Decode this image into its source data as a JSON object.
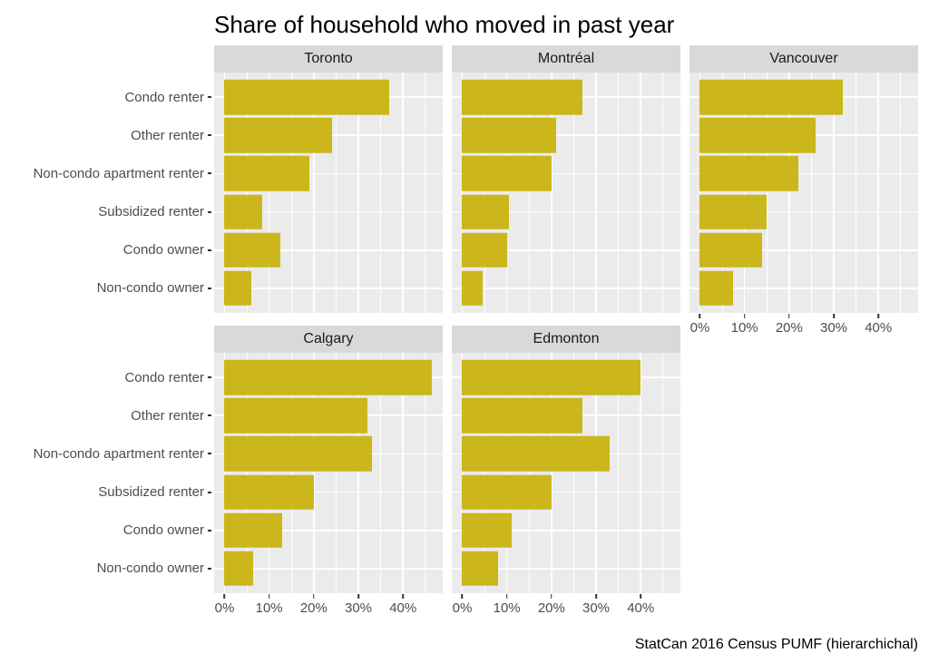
{
  "title": "Share of household who moved in past year",
  "caption": "StatCan 2016 Census PUMF (hierarchichal)",
  "chart_data": {
    "type": "bar",
    "orientation": "horizontal",
    "title": "Share of household who moved in past year",
    "caption": "StatCan 2016 Census PUMF (hierarchichal)",
    "categories": [
      "Condo renter",
      "Other renter",
      "Non-condo apartment renter",
      "Subsidized renter",
      "Condo owner",
      "Non-condo owner"
    ],
    "facets": [
      {
        "name": "Toronto",
        "row": 0,
        "show_axis": false,
        "values": [
          37,
          24,
          19,
          8.5,
          12.5,
          6
        ]
      },
      {
        "name": "Montréal",
        "row": 0,
        "show_axis": false,
        "values": [
          27,
          21,
          20,
          10.5,
          10,
          4.5
        ]
      },
      {
        "name": "Vancouver",
        "row": 0,
        "show_axis": true,
        "values": [
          32,
          26,
          22,
          15,
          14,
          7.5
        ]
      },
      {
        "name": "Calgary",
        "row": 1,
        "show_axis": true,
        "values": [
          46.5,
          32,
          33,
          20,
          13,
          6.5
        ]
      },
      {
        "name": "Edmonton",
        "row": 1,
        "show_axis": true,
        "values": [
          40,
          27,
          33,
          20,
          11,
          8
        ]
      }
    ],
    "x_axis": {
      "unit": "%",
      "min": -2.33,
      "max": 48.9,
      "major_ticks": [
        0,
        10,
        20,
        30,
        40
      ],
      "tick_labels": [
        "0%",
        "10%",
        "20%",
        "30%",
        "40%"
      ],
      "minor_ticks": [
        5,
        15,
        25,
        35,
        45
      ],
      "grid": true,
      "legend": "none"
    },
    "colors": {
      "bar": "#cbb71c",
      "panel_bg": "#ebebeb",
      "strip_bg": "#d9d9d9",
      "grid": "#ffffff",
      "axis_text": "#4d4d4d",
      "tick_mark": "#333333",
      "strip_text": "#1a1a1a",
      "title_text": "#000000"
    }
  }
}
